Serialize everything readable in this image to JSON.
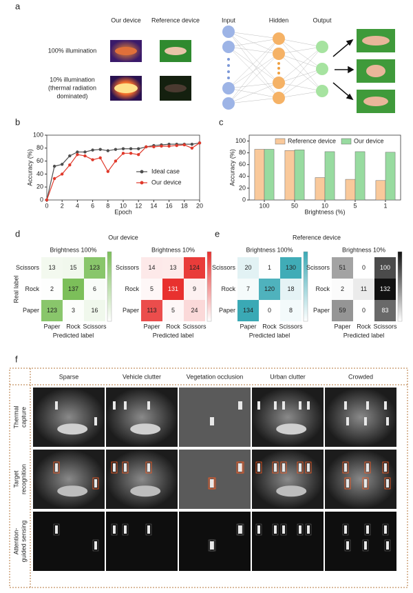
{
  "panel_letters": [
    "a",
    "b",
    "c",
    "d",
    "e",
    "f"
  ],
  "panel_a": {
    "columns": [
      "Our device",
      "Reference device"
    ],
    "rows": [
      [
        "100% illumination"
      ],
      [
        "10% illumination",
        "(thermal radiation",
        "dominated)"
      ]
    ],
    "layers": [
      "Input",
      "Hidden",
      "Output"
    ]
  },
  "chart_data": [
    {
      "type": "line",
      "xlabel": "Epoch",
      "ylabel": "Accuracy (%)",
      "x": [
        0,
        1,
        2,
        3,
        4,
        5,
        6,
        7,
        8,
        9,
        10,
        11,
        12,
        13,
        14,
        15,
        16,
        17,
        18,
        19,
        20
      ],
      "series": [
        {
          "name": "Ideal case",
          "color": "#4d4d4d",
          "values": [
            0,
            52,
            55,
            68,
            74,
            74,
            77,
            78,
            76,
            78,
            79,
            79,
            79,
            82,
            84,
            85,
            86,
            86,
            86,
            86,
            88
          ]
        },
        {
          "name": "Our device",
          "color": "#e0392b",
          "values": [
            0,
            33,
            40,
            54,
            70,
            68,
            62,
            65,
            44,
            60,
            72,
            72,
            70,
            82,
            82,
            83,
            83,
            84,
            85,
            80,
            88
          ]
        }
      ],
      "xlim": [
        0,
        20
      ],
      "xticks": [
        0,
        2,
        4,
        6,
        8,
        10,
        12,
        14,
        16,
        18,
        20
      ],
      "ylim": [
        0,
        100
      ],
      "yticks": [
        0,
        20,
        40,
        60,
        80,
        100
      ],
      "legend": "center right"
    },
    {
      "type": "bar",
      "xlabel": "Brightness (%)",
      "ylabel": "Accuracy (%)",
      "categories": [
        "100",
        "50",
        "10",
        "5",
        "1"
      ],
      "series": [
        {
          "name": "Reference device",
          "color": "#f9c99b",
          "values": [
            86,
            84,
            38,
            35,
            33
          ]
        },
        {
          "name": "Our device",
          "color": "#98dba0",
          "values": [
            86,
            85,
            82,
            82,
            81
          ]
        }
      ],
      "ylim": [
        0,
        110
      ],
      "yticks": [
        0,
        20,
        40,
        60,
        80,
        100
      ],
      "legend": "upper center"
    }
  ],
  "confusion": {
    "row_labels": [
      "Scissors",
      "Rock",
      "Paper"
    ],
    "col_labels": [
      "Paper",
      "Rock",
      "Scissors"
    ],
    "x_label": "Predicted label",
    "y_label": "Real label",
    "groups": [
      {
        "title": "Our device",
        "matrices": [
          {
            "title": "Brightness 100%",
            "color": "#7cbf5a",
            "rows": [
              [
                13,
                15,
                123
              ],
              [
                2,
                137,
                6
              ],
              [
                123,
                3,
                16
              ]
            ]
          },
          {
            "title": "Brightness 10%",
            "color": "#e8312f",
            "rows": [
              [
                14,
                13,
                124
              ],
              [
                5,
                131,
                9
              ],
              [
                113,
                5,
                24
              ]
            ]
          }
        ]
      },
      {
        "title": "Reference device",
        "matrices": [
          {
            "title": "Brightness 100%",
            "color": "#3aa9b5",
            "rows": [
              [
                20,
                1,
                130
              ],
              [
                7,
                120,
                18
              ],
              [
                134,
                0,
                8
              ]
            ]
          },
          {
            "title": "Brightness 10%",
            "color": "#111111",
            "rows": [
              [
                51,
                0,
                100
              ],
              [
                2,
                11,
                132
              ],
              [
                59,
                0,
                83
              ]
            ]
          }
        ]
      }
    ]
  },
  "panel_f": {
    "columns": [
      "Sparse",
      "Vehicle clutter",
      "Vegetation occlusion",
      "Urban clutter",
      "Crowded"
    ],
    "rows": [
      [
        "Thermal",
        "capture"
      ],
      [
        "Target",
        "recognition"
      ],
      [
        "Attention-",
        "guided sensing"
      ]
    ]
  }
}
